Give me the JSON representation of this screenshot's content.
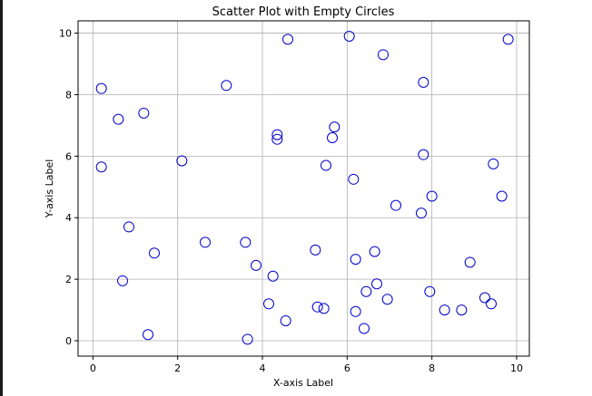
{
  "chart_data": {
    "type": "scatter",
    "title": "Scatter Plot with Empty Circles",
    "xlabel": "X-axis Label",
    "ylabel": "Y-axis Label",
    "xlim": [
      -0.35,
      10.3
    ],
    "ylim": [
      -0.5,
      10.4
    ],
    "xticks": [
      0,
      2,
      4,
      6,
      8,
      10
    ],
    "yticks": [
      0,
      2,
      4,
      6,
      8,
      10
    ],
    "xtick_labels": [
      "0",
      "2",
      "4",
      "6",
      "8",
      "10"
    ],
    "ytick_labels": [
      "0",
      "2",
      "4",
      "6",
      "8",
      "10"
    ],
    "grid": true,
    "marker": "empty-circle",
    "marker_color": "#0000cc",
    "grid_color": "#b0b0b0",
    "points": [
      {
        "x": 0.2,
        "y": 8.2
      },
      {
        "x": 0.2,
        "y": 5.65
      },
      {
        "x": 0.6,
        "y": 7.2
      },
      {
        "x": 0.7,
        "y": 1.95
      },
      {
        "x": 0.85,
        "y": 3.7
      },
      {
        "x": 1.2,
        "y": 7.4
      },
      {
        "x": 1.3,
        "y": 0.2
      },
      {
        "x": 1.45,
        "y": 2.85
      },
      {
        "x": 2.1,
        "y": 5.85
      },
      {
        "x": 2.65,
        "y": 3.2
      },
      {
        "x": 3.15,
        "y": 8.3
      },
      {
        "x": 3.6,
        "y": 3.2
      },
      {
        "x": 3.65,
        "y": 0.05
      },
      {
        "x": 3.85,
        "y": 2.45
      },
      {
        "x": 4.15,
        "y": 1.2
      },
      {
        "x": 4.25,
        "y": 2.1
      },
      {
        "x": 4.35,
        "y": 6.7
      },
      {
        "x": 4.35,
        "y": 6.55
      },
      {
        "x": 4.55,
        "y": 0.65
      },
      {
        "x": 4.6,
        "y": 9.8
      },
      {
        "x": 5.25,
        "y": 2.95
      },
      {
        "x": 5.3,
        "y": 1.1
      },
      {
        "x": 5.45,
        "y": 1.05
      },
      {
        "x": 5.5,
        "y": 5.7
      },
      {
        "x": 5.65,
        "y": 6.6
      },
      {
        "x": 5.7,
        "y": 6.95
      },
      {
        "x": 6.05,
        "y": 9.9
      },
      {
        "x": 6.15,
        "y": 5.25
      },
      {
        "x": 6.2,
        "y": 2.65
      },
      {
        "x": 6.2,
        "y": 0.95
      },
      {
        "x": 6.4,
        "y": 0.4
      },
      {
        "x": 6.45,
        "y": 1.6
      },
      {
        "x": 6.65,
        "y": 2.9
      },
      {
        "x": 6.7,
        "y": 1.85
      },
      {
        "x": 6.85,
        "y": 9.3
      },
      {
        "x": 6.95,
        "y": 1.35
      },
      {
        "x": 7.15,
        "y": 4.4
      },
      {
        "x": 7.75,
        "y": 4.15
      },
      {
        "x": 7.8,
        "y": 8.4
      },
      {
        "x": 7.8,
        "y": 6.05
      },
      {
        "x": 7.95,
        "y": 1.6
      },
      {
        "x": 8.0,
        "y": 4.7
      },
      {
        "x": 8.3,
        "y": 1.0
      },
      {
        "x": 8.7,
        "y": 1.0
      },
      {
        "x": 8.9,
        "y": 2.55
      },
      {
        "x": 9.25,
        "y": 1.4
      },
      {
        "x": 9.4,
        "y": 1.2
      },
      {
        "x": 9.45,
        "y": 5.75
      },
      {
        "x": 9.65,
        "y": 4.7
      },
      {
        "x": 9.8,
        "y": 9.8
      }
    ]
  }
}
